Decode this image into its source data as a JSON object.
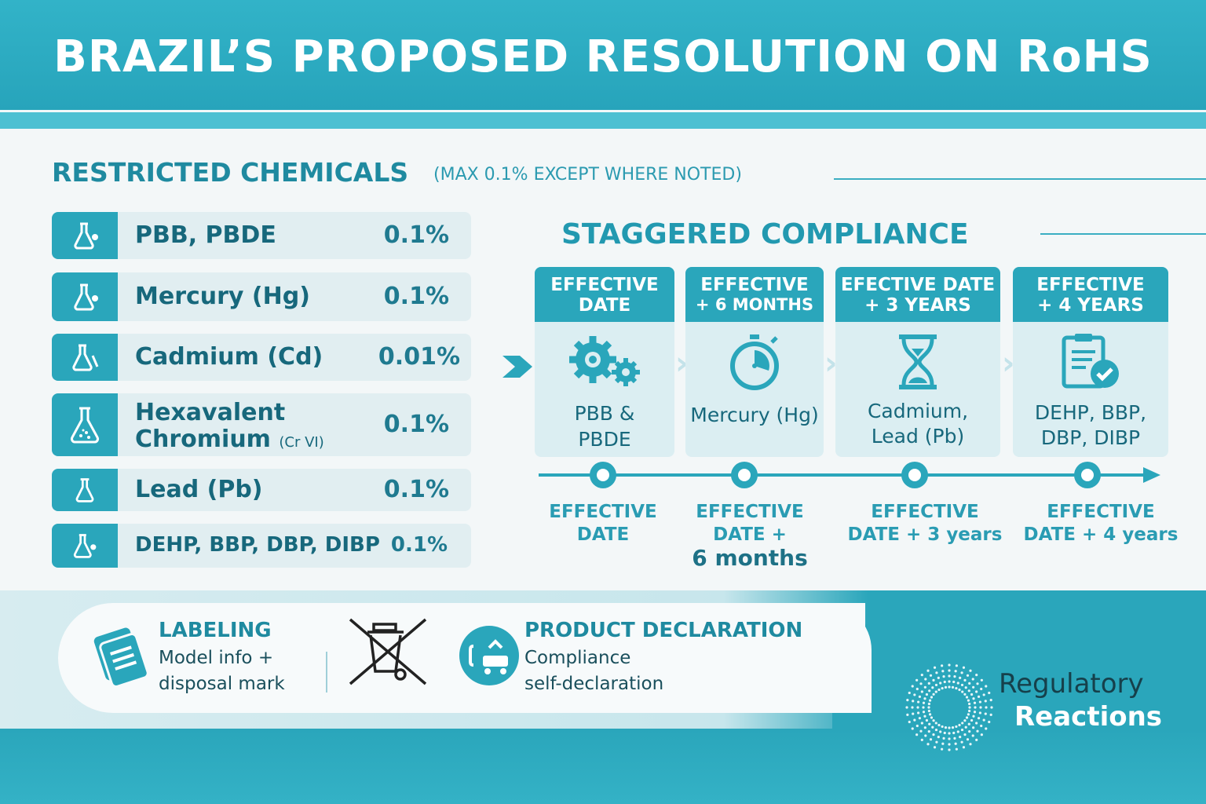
{
  "title": "BRAZIL’S PROPOSED RESOLUTION ON RoHS",
  "restricted": {
    "heading": "RESTRICTED CHEMICALS",
    "subheading": "(MAX 0.1% EXCEPT WHERE NOTED)",
    "items": [
      {
        "name": "PBB, PBDE",
        "sub": "",
        "value": "0.1%",
        "icon": "flask-icon"
      },
      {
        "name": "Mercury (Hg)",
        "sub": "",
        "value": "0.1%",
        "icon": "flask-icon"
      },
      {
        "name": "Cadmium (Cd)",
        "sub": "",
        "value": "0.01%",
        "icon": "flask-icon"
      },
      {
        "name": "Hexavalent",
        "name2": "Chromium",
        "sub": "(Cr VI)",
        "value": "0.1%",
        "icon": "flask-icon"
      },
      {
        "name": "Lead (Pb)",
        "sub": "",
        "value": "0.1%",
        "icon": "flask-icon"
      },
      {
        "name": "DEHP, BBP, DBP, DIBP",
        "sub": "",
        "value": "0.1%",
        "icon": "flask-icon"
      }
    ]
  },
  "staggered": {
    "heading": "STAGGERED COMPLIANCE",
    "cards": [
      {
        "head1": "EFFECTIVE",
        "head2": "DATE",
        "icon": "gears-icon",
        "text1": "PBB &",
        "text2": "PBDE"
      },
      {
        "head1": "EFFECTIVE",
        "head2": "+ 6 MONTHS",
        "icon": "stopwatch-icon",
        "text1": "Mercury (Hg)",
        "text2": ""
      },
      {
        "head1": "EFECTIVE DATE",
        "head2": "+ 3 YEARS",
        "icon": "hourglass-icon",
        "text1": "Cadmium,",
        "text2": "Lead (Pb)"
      },
      {
        "head1": "EFFECTIVE",
        "head2": "+ 4 YEARS",
        "icon": "clipboard-check-icon",
        "text1": "DEHP, BBP,",
        "text2": "DBP, DIBP"
      }
    ],
    "timeline": [
      {
        "line1": "EFFECTIVE",
        "line2": "DATE",
        "line3": ""
      },
      {
        "line1": "EFFECTIVE",
        "line2": "DATE +",
        "line3": "6 months"
      },
      {
        "line1": "EFFECTIVE",
        "line2": "DATE + 3 years",
        "line3": ""
      },
      {
        "line1": "EFFECTIVE",
        "line2": "DATE + 4 years",
        "line3": ""
      }
    ]
  },
  "labeling": {
    "title": "LABELING",
    "line1": "Model info +",
    "line2": "disposal mark"
  },
  "declaration": {
    "title": "PRODUCT DECLARATION",
    "line1": "Compliance",
    "line2": "self-declaration"
  },
  "brand": {
    "line1": "Regulatory",
    "line2": "Reactions"
  },
  "colors": {
    "primary": "#2aa6bb",
    "dark": "#17687c",
    "light": "#e1eef1"
  }
}
